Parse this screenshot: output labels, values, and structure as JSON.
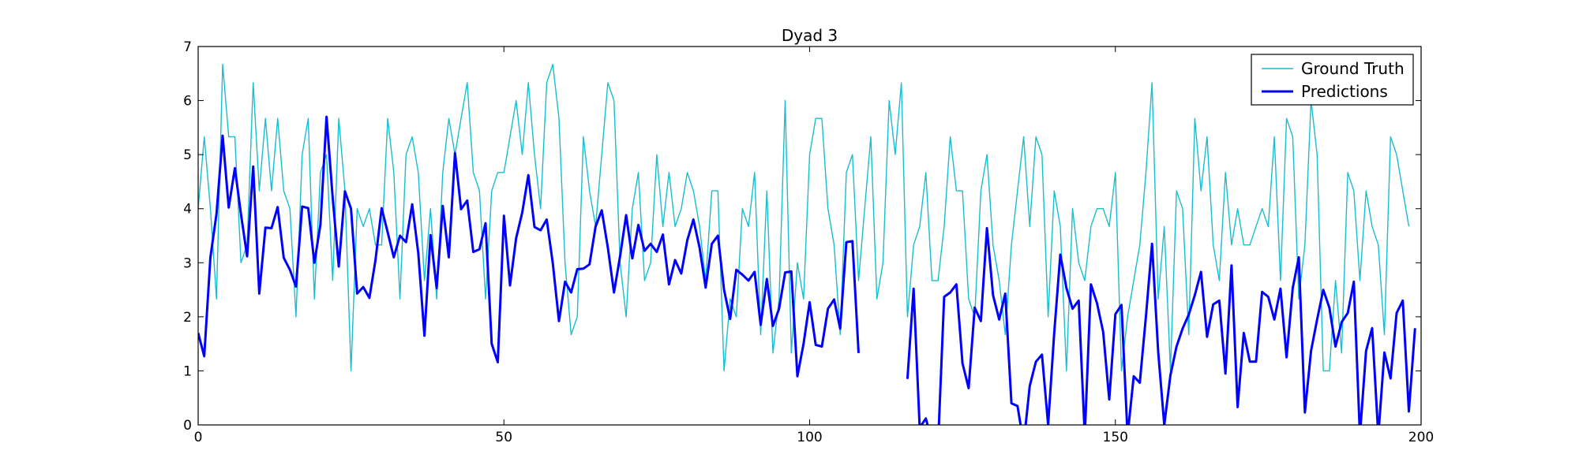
{
  "chart_data": {
    "type": "line",
    "title": "Dyad 3",
    "xlabel": "",
    "ylabel": "",
    "xlim": [
      0,
      200
    ],
    "ylim": [
      0,
      7
    ],
    "xticks": [
      0,
      50,
      100,
      150,
      200
    ],
    "yticks": [
      0,
      1,
      2,
      3,
      4,
      5,
      6,
      7
    ],
    "grid": false,
    "legend_position": "top-right",
    "series": [
      {
        "name": "Ground Truth",
        "color": "#17becf",
        "style": "thin",
        "values": [
          4.0,
          5.33,
          4.0,
          2.33,
          6.67,
          5.33,
          5.33,
          3.0,
          3.33,
          6.33,
          4.33,
          5.67,
          4.33,
          5.67,
          4.33,
          4.0,
          2.0,
          5.0,
          5.67,
          2.33,
          4.67,
          5.0,
          2.67,
          5.67,
          4.33,
          1.0,
          4.0,
          3.67,
          4.0,
          3.33,
          3.33,
          5.67,
          4.67,
          2.33,
          5.0,
          5.33,
          4.67,
          2.67,
          4.0,
          2.33,
          4.67,
          5.67,
          5.0,
          5.67,
          6.33,
          4.67,
          4.33,
          2.33,
          4.33,
          4.67,
          4.67,
          5.33,
          6.0,
          5.0,
          6.33,
          5.0,
          4.0,
          6.33,
          6.67,
          5.67,
          3.0,
          1.67,
          2.0,
          5.33,
          4.33,
          3.67,
          5.0,
          6.33,
          6.0,
          3.0,
          2.0,
          4.0,
          4.67,
          2.67,
          3.0,
          5.0,
          3.67,
          4.67,
          3.67,
          4.0,
          4.67,
          4.33,
          3.67,
          2.67,
          4.33,
          4.33,
          1.0,
          2.33,
          2.0,
          4.0,
          3.67,
          4.67,
          1.67,
          4.33,
          1.33,
          2.33,
          6.0,
          1.33,
          3.0,
          2.33,
          5.0,
          5.67,
          5.67,
          4.0,
          3.33,
          1.67,
          4.67,
          5.0,
          2.67,
          4.0,
          5.33,
          2.33,
          3.0,
          6.0,
          5.0,
          6.33,
          2.0,
          3.33,
          3.67,
          4.67,
          2.67,
          2.67,
          3.67,
          5.33,
          4.33,
          4.33,
          2.33,
          2.0,
          4.33,
          5.0,
          3.33,
          2.67,
          1.67,
          3.33,
          4.33,
          5.33,
          3.67,
          5.33,
          5.0,
          2.0,
          4.33,
          3.67,
          1.0,
          4.0,
          3.0,
          2.67,
          3.67,
          4.0,
          4.0,
          3.67,
          4.67,
          1.0,
          2.0,
          2.67,
          3.33,
          4.67,
          6.33,
          2.33,
          3.67,
          1.0,
          4.33,
          4.0,
          1.67,
          5.67,
          4.33,
          5.33,
          3.33,
          2.67,
          4.67,
          3.33,
          4.0,
          3.33,
          3.33,
          3.67,
          4.0,
          3.67,
          5.33,
          2.67,
          5.67,
          5.33,
          2.33,
          3.33,
          6.0,
          5.0,
          1.0,
          1.0,
          2.67,
          1.33,
          4.67,
          4.33,
          2.67,
          4.33,
          3.67,
          3.33,
          1.67,
          5.33,
          5.0,
          4.33,
          3.67
        ]
      },
      {
        "name": "Predictions",
        "color": "#0000ff",
        "style": "thick",
        "values": [
          1.7,
          1.27,
          3.1,
          3.9,
          5.35,
          4.02,
          4.75,
          3.9,
          3.12,
          4.78,
          2.43,
          3.65,
          3.64,
          4.03,
          3.09,
          2.87,
          2.56,
          4.04,
          4.01,
          3.0,
          3.71,
          5.7,
          4.2,
          2.93,
          4.32,
          4.0,
          2.43,
          2.55,
          2.35,
          3.05,
          4.01,
          3.56,
          3.1,
          3.5,
          3.38,
          4.08,
          3.18,
          1.65,
          3.51,
          2.53,
          4.05,
          3.1,
          5.03,
          3.99,
          4.15,
          3.2,
          3.25,
          3.73,
          1.5,
          1.16,
          3.87,
          2.58,
          3.45,
          3.93,
          4.62,
          3.66,
          3.6,
          3.8,
          2.99,
          1.92,
          2.65,
          2.45,
          2.88,
          2.89,
          2.97,
          3.67,
          3.97,
          3.28,
          2.45,
          3.12,
          3.88,
          3.08,
          3.7,
          3.22,
          3.35,
          3.2,
          3.52,
          2.6,
          3.05,
          2.8,
          3.42,
          3.8,
          3.28,
          2.54,
          3.35,
          3.5,
          2.5,
          1.96,
          2.87,
          2.78,
          2.67,
          2.83,
          1.85,
          2.7,
          1.83,
          2.15,
          2.82,
          2.84,
          0.9,
          1.5,
          2.27,
          1.48,
          1.45,
          2.15,
          2.32,
          1.78,
          3.38,
          3.4,
          1.33,
          null,
          null,
          null,
          null,
          null,
          null,
          null,
          0.85,
          2.52,
          -0.05,
          0.12,
          -0.3,
          -0.4,
          2.37,
          2.45,
          2.6,
          1.14,
          0.68,
          2.17,
          1.92,
          3.64,
          2.4,
          1.95,
          2.43,
          0.4,
          0.35,
          -0.35,
          0.72,
          1.17,
          1.3,
          0.0,
          1.7,
          3.15,
          2.53,
          2.15,
          2.3,
          -0.2,
          2.6,
          2.25,
          1.72,
          0.47,
          2.05,
          2.22,
          -0.2,
          0.9,
          0.78,
          2.01,
          3.35,
          1.35,
          0.0,
          0.92,
          1.45,
          1.78,
          2.04,
          2.4,
          2.83,
          1.63,
          2.23,
          2.3,
          0.95,
          2.95,
          0.33,
          1.7,
          1.17,
          1.17,
          2.46,
          2.37,
          1.95,
          2.52,
          1.25,
          2.53,
          3.1,
          0.23,
          1.37,
          1.95,
          2.5,
          2.17,
          1.45,
          1.9,
          2.07,
          2.65,
          -0.2,
          1.37,
          1.79,
          -0.2,
          1.34,
          0.86,
          2.07,
          2.3,
          0.25,
          1.79
        ]
      }
    ]
  }
}
